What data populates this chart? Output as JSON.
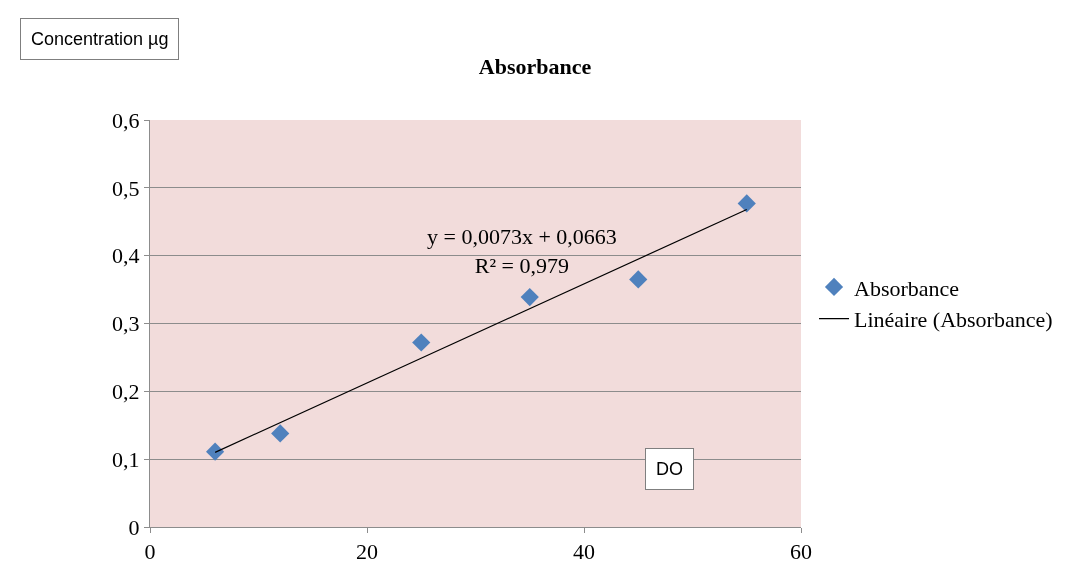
{
  "chart_data": {
    "type": "scatter",
    "title": "Absorbance",
    "xlabel": "DO",
    "ylabel": "Concentration µg",
    "series": [
      {
        "name": "Absorbance",
        "color": "#4f81bd",
        "marker": "diamond",
        "x": [
          6,
          12,
          25,
          35,
          45,
          55
        ],
        "values": [
          0.111,
          0.138,
          0.272,
          0.339,
          0.365,
          0.477
        ]
      },
      {
        "name": "Linéaire (Absorbance)",
        "color": "#000000",
        "type": "line",
        "marker": "none",
        "line_style": "solid",
        "x": [
          6,
          55
        ],
        "values": [
          0.11,
          0.468
        ]
      }
    ],
    "annotations": [
      "y = 0,0073x + 0,0663\nR² = 0,979"
    ],
    "xlim": [
      0,
      60
    ],
    "xticks": [
      0,
      20,
      40,
      60
    ],
    "ylim": [
      0,
      0.6
    ],
    "yticks": [
      {
        "value": 0,
        "label": "0"
      },
      {
        "value": 0.1,
        "label": "0,1"
      },
      {
        "value": 0.2,
        "label": "0,2"
      },
      {
        "value": 0.3,
        "label": "0,3"
      },
      {
        "value": 0.4,
        "label": "0,4"
      },
      {
        "value": 0.5,
        "label": "0,5"
      },
      {
        "value": 0.6,
        "label": "0,6"
      }
    ],
    "grid": "y",
    "legend": "right"
  }
}
